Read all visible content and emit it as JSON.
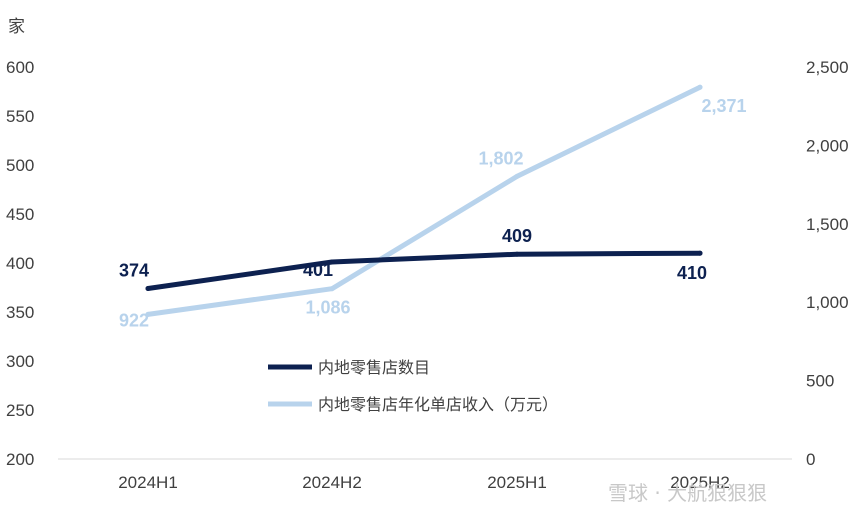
{
  "chart_data": {
    "type": "line",
    "left_axis": {
      "unit_label": "家",
      "ylim": [
        200,
        600
      ],
      "ticks": [
        "200",
        "250",
        "300",
        "350",
        "400",
        "450",
        "500",
        "550",
        "600"
      ]
    },
    "right_axis": {
      "ylim": [
        0,
        2500
      ],
      "ticks": [
        "0",
        "500",
        "1,000",
        "1,500",
        "2,000",
        "2,500"
      ]
    },
    "categories": [
      "2024H1",
      "2024H2",
      "2025H1",
      "2025H2"
    ],
    "series": [
      {
        "name": "内地零售店数目",
        "axis": "left",
        "color": "#0d2150",
        "values": [
          374,
          401,
          409,
          410
        ],
        "labels": [
          "374",
          "401",
          "409",
          "410"
        ]
      },
      {
        "name": "内地零售店年化单店收入（万元）",
        "axis": "right",
        "color": "#b8d3ec",
        "values": [
          922,
          1086,
          1802,
          2371
        ],
        "labels": [
          "922",
          "1,086",
          "1,802",
          "2,371"
        ]
      }
    ],
    "grid": false,
    "legend_position": "center"
  },
  "watermark": "雪球 · 大航狠狠狠"
}
